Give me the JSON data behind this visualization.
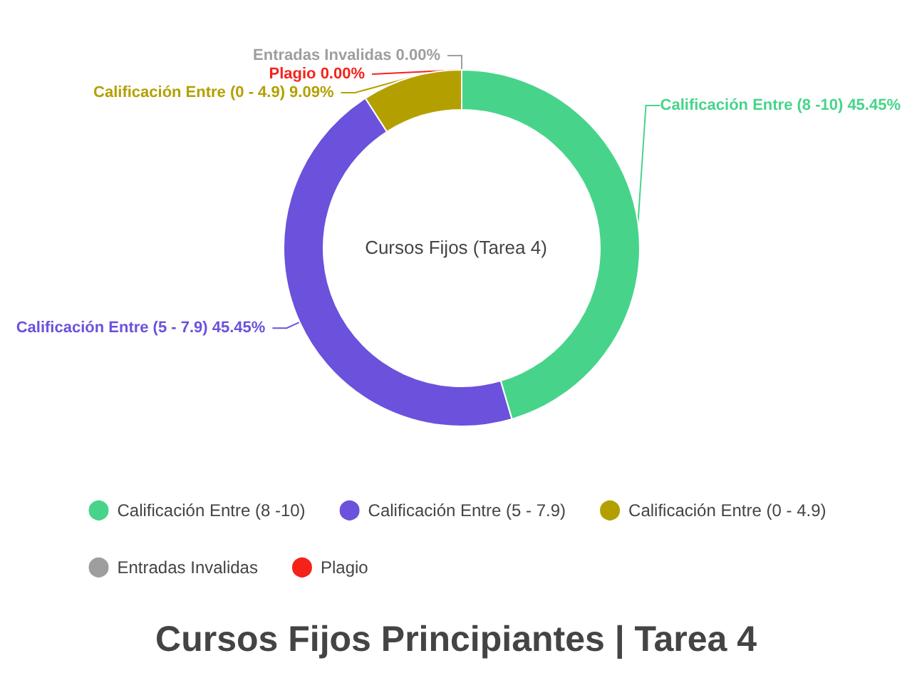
{
  "chart_data": {
    "type": "donut",
    "title": "Cursos Fijos Principiantes | Tarea 4",
    "annotations": [
      "Cursos Fijos (Tarea 4)"
    ],
    "categories": [
      "Calificación Entre (8 -10)",
      "Calificación Entre (5 - 7.9)",
      "Calificación Entre (0 - 4.9)",
      "Entradas Invalidas",
      "Plagio"
    ],
    "values": [
      45.45,
      45.45,
      9.09,
      0,
      0
    ],
    "value_labels": [
      "45.45%",
      "45.45%",
      "9.09%",
      "0.00%",
      "0.00%"
    ],
    "colors": [
      "#47d48a",
      "#6c51dc",
      "#b3a000",
      "#9e9e9e",
      "#f5221a"
    ],
    "legend": "bottom"
  }
}
